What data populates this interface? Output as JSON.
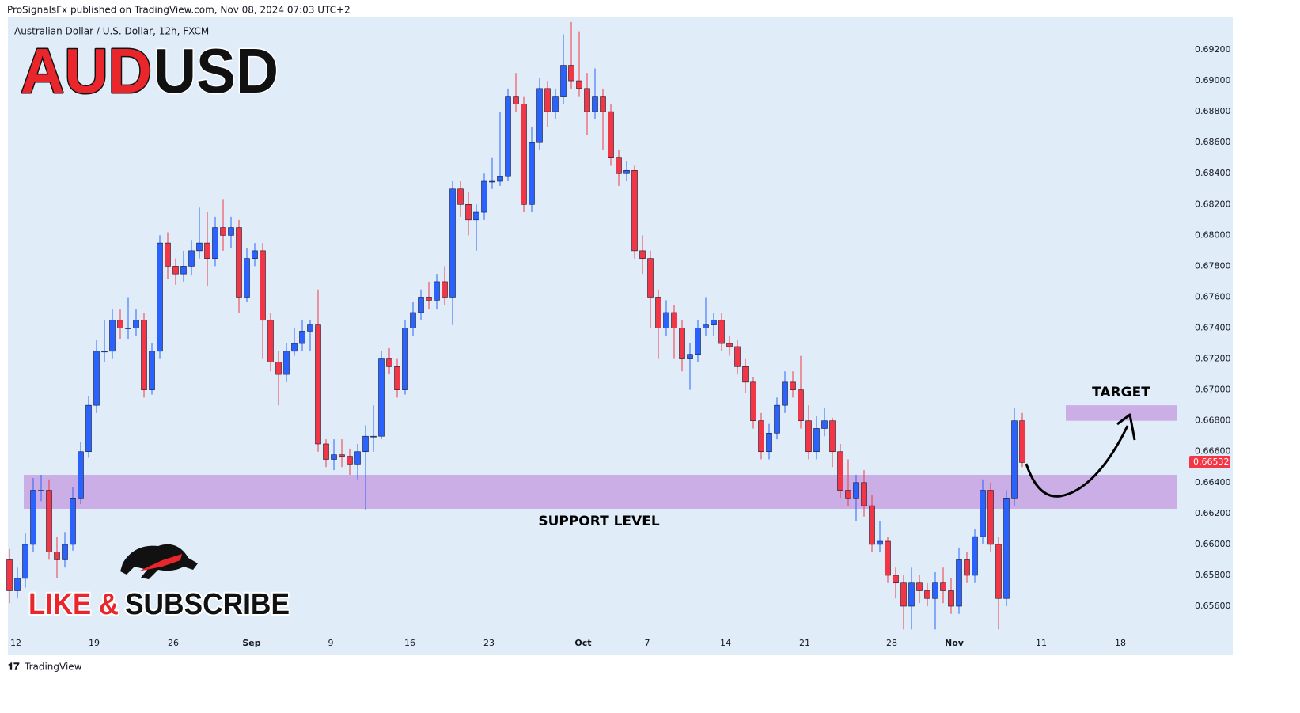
{
  "header": {
    "published": "ProSignalsFx published on TradingView.com, Nov 08, 2024 07:03 UTC+2",
    "footer": "TradingView"
  },
  "badge": {
    "title_left": "AUD",
    "title_right": "USD",
    "cta_left": "LIKE &",
    "cta_right": "SUBSCRIBE"
  },
  "chart_data": {
    "type": "candlestick",
    "title": "Australian Dollar / U.S. Dollar, 12h, FXCM",
    "up_color": "#2962ff",
    "down_color": "#f23645",
    "grid": false,
    "ylim": [
      0.65426,
      0.6941
    ],
    "yticks": [
      {
        "value": 0.692,
        "label": "0.69200"
      },
      {
        "value": 0.69,
        "label": "0.69000"
      },
      {
        "value": 0.688,
        "label": "0.68800"
      },
      {
        "value": 0.686,
        "label": "0.68600"
      },
      {
        "value": 0.684,
        "label": "0.68400"
      },
      {
        "value": 0.682,
        "label": "0.68200"
      },
      {
        "value": 0.68,
        "label": "0.68000"
      },
      {
        "value": 0.678,
        "label": "0.67800"
      },
      {
        "value": 0.676,
        "label": "0.67600"
      },
      {
        "value": 0.674,
        "label": "0.67400"
      },
      {
        "value": 0.672,
        "label": "0.67200"
      },
      {
        "value": 0.67,
        "label": "0.67000"
      },
      {
        "value": 0.668,
        "label": "0.66800"
      },
      {
        "value": 0.666,
        "label": "0.66600"
      },
      {
        "value": 0.664,
        "label": "0.66400"
      },
      {
        "value": 0.662,
        "label": "0.66200"
      },
      {
        "value": 0.66,
        "label": "0.66000"
      },
      {
        "value": 0.658,
        "label": "0.65800"
      },
      {
        "value": 0.656,
        "label": "0.65600"
      }
    ],
    "xlim": [
      -0.2,
      148.8
    ],
    "xticks": [
      {
        "value": 0.8,
        "label": "12"
      },
      {
        "value": 10.7,
        "label": "19"
      },
      {
        "value": 20.7,
        "label": "26"
      },
      {
        "value": 30.6,
        "label": "Sep"
      },
      {
        "value": 40.6,
        "label": "9"
      },
      {
        "value": 50.6,
        "label": "16"
      },
      {
        "value": 60.6,
        "label": "23"
      },
      {
        "value": 72.5,
        "label": "Oct"
      },
      {
        "value": 80.6,
        "label": "7"
      },
      {
        "value": 90.5,
        "label": "14"
      },
      {
        "value": 100.5,
        "label": "21"
      },
      {
        "value": 111.5,
        "label": "28"
      },
      {
        "value": 119.4,
        "label": "Nov"
      },
      {
        "value": 130.4,
        "label": "11"
      },
      {
        "value": 140.4,
        "label": "18"
      }
    ],
    "open": [
      0.659,
      0.657,
      0.6578,
      0.66,
      0.6635,
      0.6635,
      0.6595,
      0.659,
      0.66,
      0.663,
      0.666,
      0.669,
      0.6725,
      0.6725,
      0.6745,
      0.674,
      0.674,
      0.6745,
      0.67,
      0.6725,
      0.6795,
      0.678,
      0.6775,
      0.678,
      0.679,
      0.6795,
      0.6785,
      0.6805,
      0.68,
      0.6805,
      0.676,
      0.6785,
      0.679,
      0.6745,
      0.6718,
      0.671,
      0.6725,
      0.673,
      0.6738,
      0.6742,
      0.6665,
      0.6655,
      0.6658,
      0.6657,
      0.6652,
      0.666,
      0.667,
      0.667,
      0.672,
      0.6715,
      0.67,
      0.674,
      0.675,
      0.676,
      0.6758,
      0.677,
      0.676,
      0.683,
      0.682,
      0.681,
      0.6815,
      0.6835,
      0.6835,
      0.6838,
      0.689,
      0.6885,
      0.682,
      0.686,
      0.6895,
      0.688,
      0.689,
      0.691,
      0.69,
      0.6895,
      0.688,
      0.689,
      0.688,
      0.685,
      0.684,
      0.6842,
      0.679,
      0.6785,
      0.676,
      0.674,
      0.675,
      0.674,
      0.672,
      0.6723,
      0.674,
      0.6742,
      0.6745,
      0.673,
      0.6728,
      0.6715,
      0.6705,
      0.668,
      0.666,
      0.6672,
      0.669,
      0.6705,
      0.67,
      0.668,
      0.666,
      0.6675,
      0.668,
      0.666,
      0.6635,
      0.663,
      0.664,
      0.6625,
      0.66,
      0.6602,
      0.658,
      0.6575,
      0.656,
      0.6575,
      0.657,
      0.6565,
      0.6575,
      0.657,
      0.656,
      0.659,
      0.658,
      0.6605,
      0.6635,
      0.66,
      0.6565,
      0.663,
      0.668
    ],
    "high": [
      0.6597,
      0.6585,
      0.6607,
      0.6643,
      0.6645,
      0.6642,
      0.6605,
      0.6608,
      0.6637,
      0.6666,
      0.6696,
      0.6732,
      0.6745,
      0.6752,
      0.6752,
      0.676,
      0.6752,
      0.675,
      0.673,
      0.68,
      0.6802,
      0.6785,
      0.679,
      0.6797,
      0.6818,
      0.6815,
      0.6812,
      0.6823,
      0.6812,
      0.681,
      0.6792,
      0.6795,
      0.6795,
      0.675,
      0.6725,
      0.673,
      0.674,
      0.6745,
      0.6745,
      0.6765,
      0.6668,
      0.6668,
      0.6668,
      0.6662,
      0.6665,
      0.6677,
      0.669,
      0.6725,
      0.6727,
      0.672,
      0.6745,
      0.6757,
      0.6765,
      0.677,
      0.6775,
      0.678,
      0.6835,
      0.6835,
      0.6828,
      0.682,
      0.684,
      0.685,
      0.688,
      0.6895,
      0.6905,
      0.689,
      0.687,
      0.6902,
      0.69,
      0.6895,
      0.693,
      0.6938,
      0.6932,
      0.6905,
      0.6908,
      0.6895,
      0.6885,
      0.6855,
      0.6848,
      0.6845,
      0.68,
      0.679,
      0.6765,
      0.6758,
      0.6755,
      0.6745,
      0.673,
      0.6745,
      0.676,
      0.675,
      0.675,
      0.6735,
      0.6732,
      0.672,
      0.6708,
      0.6685,
      0.6678,
      0.6695,
      0.6712,
      0.6712,
      0.6722,
      0.669,
      0.6683,
      0.6688,
      0.6682,
      0.6665,
      0.6655,
      0.6645,
      0.6648,
      0.6632,
      0.6615,
      0.6605,
      0.6585,
      0.658,
      0.6585,
      0.658,
      0.6575,
      0.6582,
      0.6585,
      0.6578,
      0.6598,
      0.6595,
      0.661,
      0.6642,
      0.664,
      0.6605,
      0.6635,
      0.6688,
      0.6685
    ],
    "low": [
      0.6562,
      0.6565,
      0.6572,
      0.6595,
      0.6628,
      0.659,
      0.6578,
      0.6585,
      0.6596,
      0.6626,
      0.6656,
      0.6685,
      0.6718,
      0.672,
      0.6733,
      0.6733,
      0.6735,
      0.6695,
      0.6697,
      0.672,
      0.6772,
      0.6768,
      0.677,
      0.6774,
      0.6785,
      0.6767,
      0.678,
      0.679,
      0.6792,
      0.675,
      0.6757,
      0.678,
      0.672,
      0.6712,
      0.669,
      0.6705,
      0.6722,
      0.6725,
      0.6725,
      0.666,
      0.665,
      0.6648,
      0.665,
      0.6645,
      0.6642,
      0.6622,
      0.666,
      0.6668,
      0.671,
      0.6695,
      0.6697,
      0.6735,
      0.6745,
      0.6752,
      0.6752,
      0.6755,
      0.6742,
      0.6812,
      0.68,
      0.679,
      0.681,
      0.683,
      0.6832,
      0.6835,
      0.688,
      0.6815,
      0.6815,
      0.6855,
      0.687,
      0.6875,
      0.6885,
      0.6895,
      0.689,
      0.6865,
      0.6875,
      0.6855,
      0.6845,
      0.6832,
      0.6835,
      0.6785,
      0.6775,
      0.674,
      0.672,
      0.6735,
      0.672,
      0.6712,
      0.67,
      0.6718,
      0.6735,
      0.6735,
      0.6725,
      0.6722,
      0.671,
      0.6698,
      0.6675,
      0.6655,
      0.6655,
      0.6668,
      0.6685,
      0.6695,
      0.6675,
      0.6655,
      0.6655,
      0.667,
      0.665,
      0.663,
      0.6625,
      0.6615,
      0.6618,
      0.6595,
      0.6595,
      0.6575,
      0.6565,
      0.6545,
      0.6545,
      0.6562,
      0.656,
      0.6545,
      0.6562,
      0.6555,
      0.6555,
      0.6575,
      0.6575,
      0.66,
      0.6595,
      0.6545,
      0.656,
      0.6625,
      0.665
    ],
    "close": [
      0.657,
      0.6578,
      0.66,
      0.6635,
      0.6635,
      0.6595,
      0.659,
      0.66,
      0.663,
      0.666,
      0.669,
      0.6725,
      0.6725,
      0.6745,
      0.674,
      0.674,
      0.6745,
      0.67,
      0.6725,
      0.6795,
      0.678,
      0.6775,
      0.678,
      0.679,
      0.6795,
      0.6785,
      0.6805,
      0.68,
      0.6805,
      0.676,
      0.6785,
      0.679,
      0.6745,
      0.6718,
      0.671,
      0.6725,
      0.673,
      0.6738,
      0.6742,
      0.6665,
      0.6655,
      0.6658,
      0.6657,
      0.6652,
      0.666,
      0.667,
      0.667,
      0.672,
      0.6715,
      0.67,
      0.674,
      0.675,
      0.676,
      0.6758,
      0.677,
      0.676,
      0.683,
      0.682,
      0.681,
      0.6815,
      0.6835,
      0.6835,
      0.6838,
      0.689,
      0.6885,
      0.682,
      0.686,
      0.6895,
      0.688,
      0.689,
      0.691,
      0.69,
      0.6895,
      0.688,
      0.689,
      0.688,
      0.685,
      0.684,
      0.6842,
      0.679,
      0.6785,
      0.676,
      0.674,
      0.675,
      0.674,
      0.672,
      0.6723,
      0.674,
      0.6742,
      0.6745,
      0.673,
      0.6728,
      0.6715,
      0.6705,
      0.668,
      0.666,
      0.6672,
      0.669,
      0.6705,
      0.67,
      0.668,
      0.666,
      0.6675,
      0.668,
      0.666,
      0.6635,
      0.663,
      0.664,
      0.6625,
      0.66,
      0.6602,
      0.658,
      0.6575,
      0.656,
      0.6575,
      0.657,
      0.6565,
      0.6575,
      0.657,
      0.656,
      0.659,
      0.658,
      0.6605,
      0.6635,
      0.66,
      0.6565,
      0.663,
      0.668,
      0.6653
    ],
    "zones": [
      {
        "name": "SUPPORT LEVEL",
        "color": "#c8a6e2",
        "ylim": [
          0.6623,
          0.6645
        ],
        "xlim": [
          1.8,
          147.5
        ]
      },
      {
        "name": "TARGET",
        "color": "#c8a6e2",
        "ylim": [
          0.668,
          0.669
        ],
        "xlim": [
          133.5,
          147.5
        ]
      }
    ],
    "last_price": {
      "value": 0.66532,
      "label": "0.66532",
      "color": "#f23645"
    }
  }
}
